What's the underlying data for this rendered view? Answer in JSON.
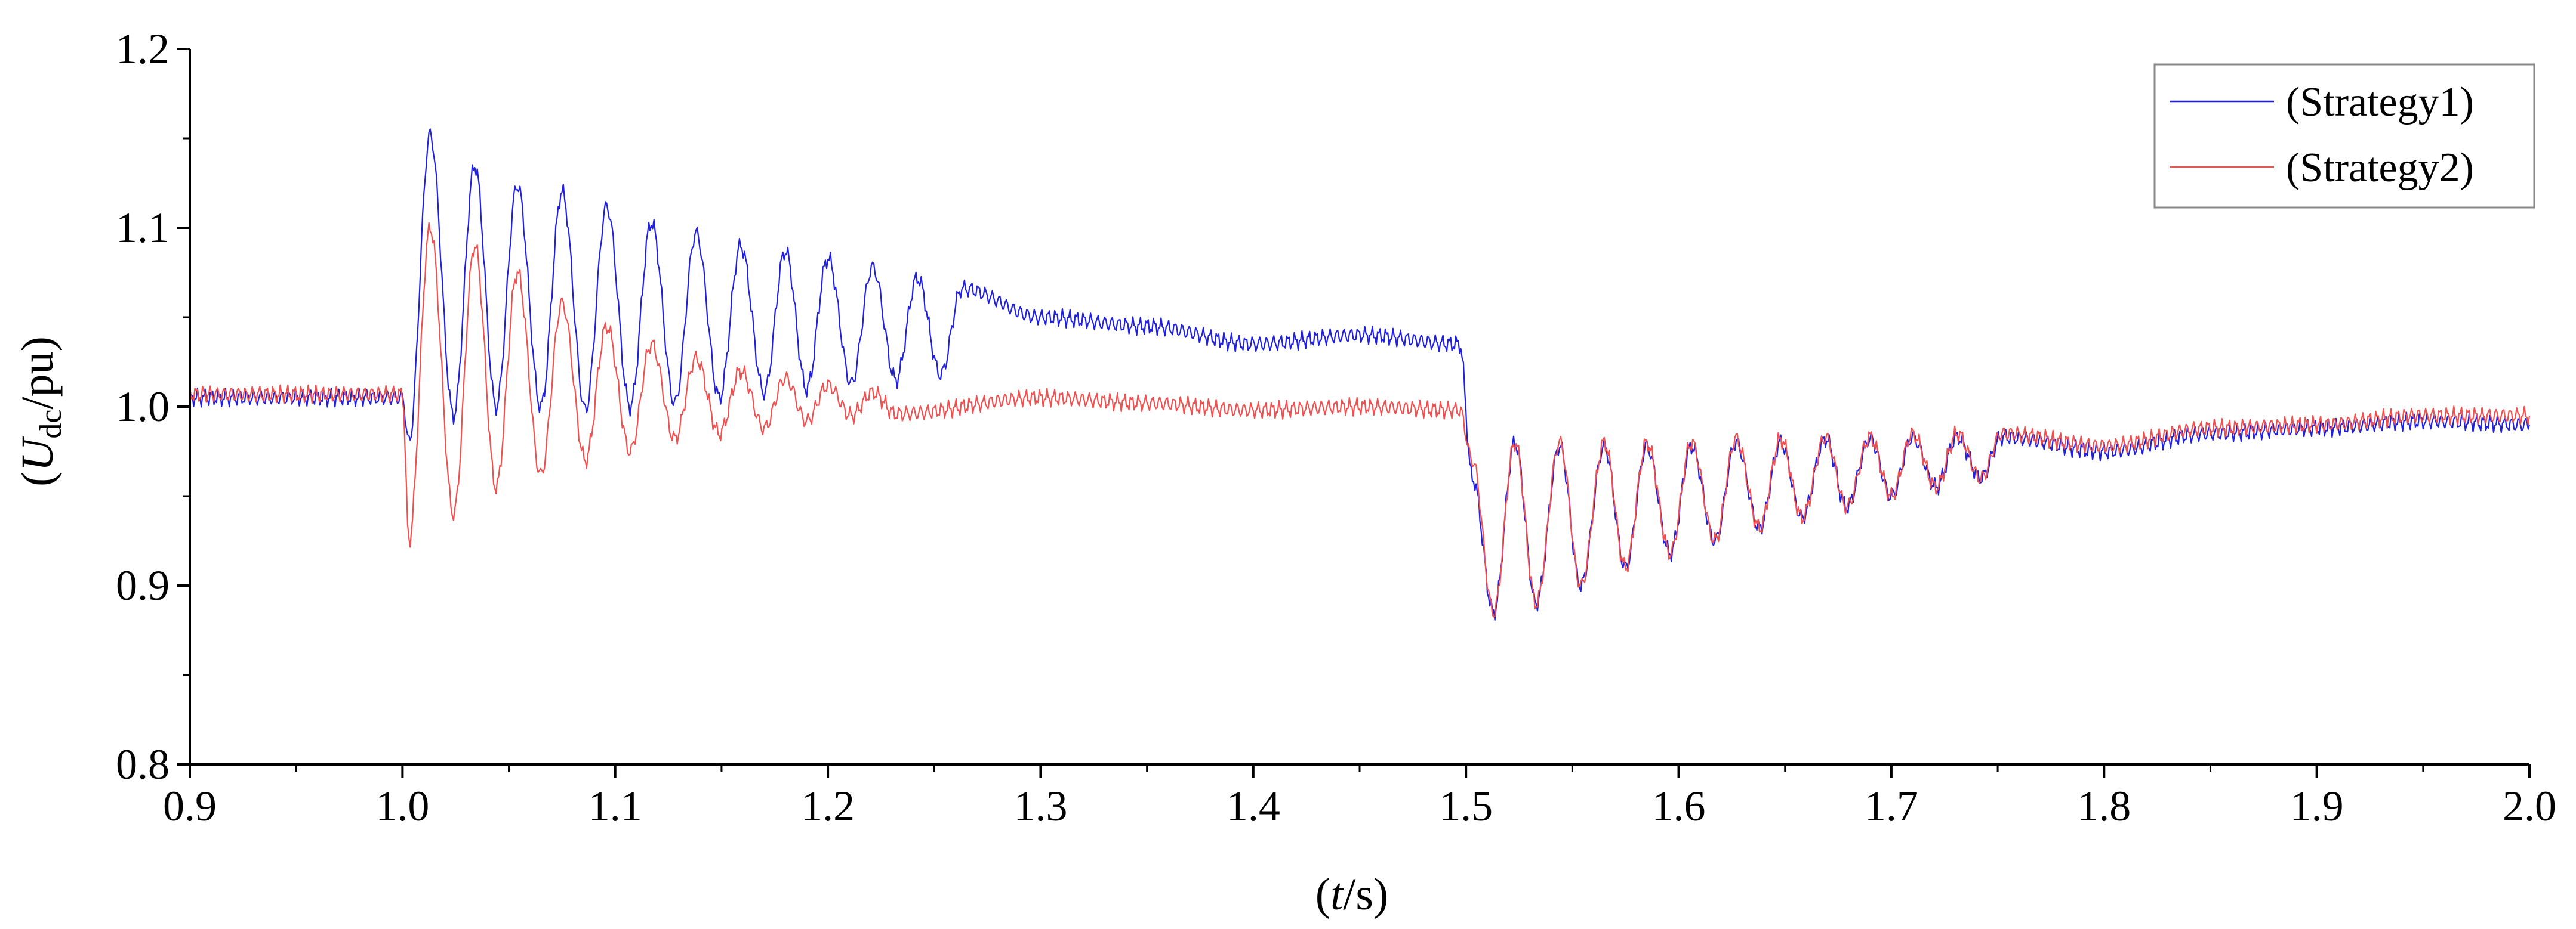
{
  "chart_data": {
    "type": "line",
    "title": "",
    "xlabel": {
      "open": "(",
      "var": "t",
      "rest": "/s)"
    },
    "ylabel": {
      "open": "(",
      "var": "U",
      "sub": "dc",
      "rest": "/pu)"
    },
    "xlim": [
      0.9,
      2.0
    ],
    "ylim": [
      0.8,
      1.2
    ],
    "xticks": [
      "0.9",
      "1.0",
      "1.1",
      "1.2",
      "1.3",
      "1.4",
      "1.5",
      "1.6",
      "1.7",
      "1.8",
      "1.9",
      "2.0"
    ],
    "yticks": [
      "0.8",
      "0.9",
      "1.0",
      "1.1",
      "1.2"
    ],
    "grid": false,
    "legend_position": "top-right",
    "series": [
      {
        "name": "(Strategy1)",
        "color": "#1f1fe0",
        "x": [
          0.9,
          1.0,
          1.003,
          1.013,
          1.024,
          1.034,
          1.044,
          1.054,
          1.065,
          1.075,
          1.086,
          1.096,
          1.107,
          1.117,
          1.128,
          1.138,
          1.149,
          1.159,
          1.17,
          1.18,
          1.19,
          1.2,
          1.211,
          1.221,
          1.232,
          1.242,
          1.253,
          1.263,
          1.3,
          1.35,
          1.4,
          1.45,
          1.497,
          1.503,
          1.513,
          1.523,
          1.533,
          1.544,
          1.554,
          1.565,
          1.575,
          1.585,
          1.596,
          1.606,
          1.617,
          1.627,
          1.638,
          1.648,
          1.658,
          1.669,
          1.679,
          1.69,
          1.7,
          1.71,
          1.721,
          1.731,
          1.742,
          1.752,
          1.8,
          1.85,
          1.9,
          1.95,
          2.0
        ],
        "y": [
          1.005,
          1.005,
          0.98,
          1.152,
          0.995,
          1.135,
          1.0,
          1.124,
          1.0,
          1.12,
          0.998,
          1.112,
          1.0,
          1.103,
          1.002,
          1.097,
          1.005,
          1.09,
          1.008,
          1.087,
          1.01,
          1.083,
          1.013,
          1.078,
          1.015,
          1.072,
          1.018,
          1.066,
          1.05,
          1.045,
          1.035,
          1.04,
          1.035,
          0.96,
          0.885,
          0.98,
          0.89,
          0.978,
          0.9,
          0.978,
          0.91,
          0.978,
          0.918,
          0.978,
          0.925,
          0.98,
          0.932,
          0.98,
          0.938,
          0.982,
          0.944,
          0.982,
          0.95,
          0.983,
          0.955,
          0.983,
          0.96,
          0.983,
          0.975,
          0.985,
          0.988,
          0.992,
          0.99
        ]
      },
      {
        "name": "(Strategy2)",
        "color": "#f05050",
        "x": [
          0.9,
          1.0,
          1.003,
          1.013,
          1.024,
          1.034,
          1.044,
          1.054,
          1.065,
          1.075,
          1.086,
          1.096,
          1.107,
          1.117,
          1.128,
          1.138,
          1.149,
          1.159,
          1.17,
          1.18,
          1.19,
          1.2,
          1.211,
          1.221,
          1.232,
          1.3,
          1.35,
          1.4,
          1.45,
          1.497,
          1.503,
          1.513,
          1.523,
          1.533,
          1.544,
          1.554,
          1.565,
          1.575,
          1.585,
          1.596,
          1.606,
          1.617,
          1.627,
          1.638,
          1.648,
          1.658,
          1.669,
          1.679,
          1.69,
          1.7,
          1.71,
          1.721,
          1.731,
          1.742,
          1.752,
          1.8,
          1.85,
          1.9,
          1.95,
          2.0
        ],
        "y": [
          1.007,
          1.007,
          0.925,
          1.1,
          0.94,
          1.09,
          0.955,
          1.075,
          0.962,
          1.058,
          0.97,
          1.045,
          0.975,
          1.035,
          0.982,
          1.027,
          0.985,
          1.02,
          0.988,
          1.016,
          0.992,
          1.012,
          0.995,
          1.008,
          0.996,
          1.005,
          1.002,
          0.998,
          1.0,
          0.998,
          0.97,
          0.885,
          0.98,
          0.89,
          0.98,
          0.9,
          0.98,
          0.91,
          0.98,
          0.918,
          0.98,
          0.925,
          0.982,
          0.932,
          0.982,
          0.938,
          0.983,
          0.944,
          0.983,
          0.95,
          0.985,
          0.955,
          0.985,
          0.96,
          0.985,
          0.978,
          0.988,
          0.99,
          0.995,
          0.995
        ]
      }
    ]
  }
}
